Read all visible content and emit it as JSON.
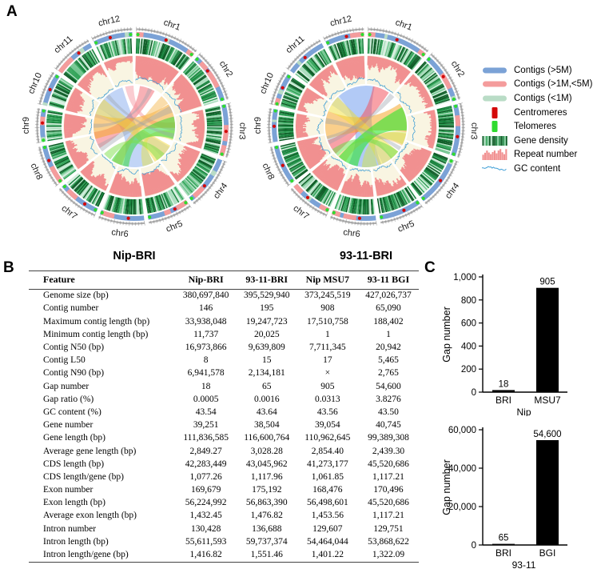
{
  "panels": {
    "a": "A",
    "b": "B",
    "c": "C"
  },
  "circos": {
    "plots": [
      {
        "title": "Nip-BRI",
        "seed": 7,
        "chromosomes": [
          "chr1",
          "chr2",
          "chr3",
          "chr4",
          "chr5",
          "chr6",
          "chr7",
          "chr8",
          "chr9",
          "chr10",
          "chr11",
          "chr12"
        ]
      },
      {
        "title": "93-11-BRI",
        "seed": 23,
        "chromosomes": [
          "chr1",
          "chr2",
          "chr3",
          "chr4",
          "chr5",
          "chr6",
          "chr7",
          "chr8",
          "chr9",
          "chr10",
          "chr11",
          "chr12"
        ]
      }
    ],
    "colors": {
      "contig_large": "#7ba2d6",
      "contig_mid": "#f49c9c",
      "contig_small": "#b9dcc6",
      "centromere": "#d40909",
      "telomere": "#2fdb2f",
      "repeat": "#f19090",
      "gc": "#3e9ed6",
      "scale_ring": "#b0b0b0",
      "inner_background": "#f8f4df",
      "gene_density_palette": [
        "#0a5a23",
        "#15803a",
        "#2fa256",
        "#6fc48d",
        "#a9dcbc",
        "#d7efe0"
      ]
    },
    "legend": {
      "items": [
        {
          "label": "Contigs (>5M)",
          "type": "bar",
          "color": "#7ba2d6"
        },
        {
          "label": "Contigs (>1M,<5M)",
          "type": "bar",
          "color": "#f49c9c"
        },
        {
          "label": "Contigs (<1M)",
          "type": "bar",
          "color": "#b9dcc6"
        },
        {
          "label": "Centromeres",
          "type": "vbar",
          "color": "#d40909"
        },
        {
          "label": "Telomeres",
          "type": "vbar",
          "color": "#2fdb2f"
        },
        {
          "label": "Gene density",
          "type": "density",
          "color": "#15803a"
        },
        {
          "label": "Repeat number",
          "type": "hist",
          "color": "#f19090"
        },
        {
          "label": "GC content",
          "type": "wave",
          "color": "#3e9ed6"
        }
      ]
    }
  },
  "table": {
    "columns": [
      "Feature",
      "Nip-BRI",
      "93-11-BRI",
      "Nip MSU7",
      "93-11 BGI"
    ],
    "rows": [
      {
        "feature": "Genome size (bp)",
        "values": [
          "380,697,840",
          "395,529,940",
          "373,245,519",
          "427,026,737"
        ]
      },
      {
        "feature": "Contig number",
        "values": [
          "146",
          "195",
          "908",
          "65,090"
        ]
      },
      {
        "feature": "Maximum contig length (bp)",
        "values": [
          "33,938,048",
          "19,247,723",
          "17,510,758",
          "188,402"
        ]
      },
      {
        "feature": "Minimum contig length (bp)",
        "values": [
          "11,737",
          "20,025",
          "1",
          "1"
        ]
      },
      {
        "feature": "Contig N50 (bp)",
        "values": [
          "16,973,866",
          "9,639,809",
          "7,711,345",
          "20,942"
        ]
      },
      {
        "feature": "Contig L50",
        "values": [
          "8",
          "15",
          "17",
          "5,465"
        ]
      },
      {
        "feature": "Contig N90 (bp)",
        "values": [
          "6,941,578",
          "2,134,181",
          "×",
          "2,765"
        ]
      },
      {
        "feature": "Gap number",
        "values": [
          "18",
          "65",
          "905",
          "54,600"
        ]
      },
      {
        "feature": "Gap ratio (%)",
        "values": [
          "0.0005",
          "0.0016",
          "0.0313",
          "3.8276"
        ]
      },
      {
        "feature": "GC content (%)",
        "values": [
          "43.54",
          "43.64",
          "43.56",
          "43.50"
        ]
      },
      {
        "feature": "Gene number",
        "values": [
          "39,251",
          "38,504",
          "39,054",
          "40,745"
        ]
      },
      {
        "feature": "Gene length (bp)",
        "values": [
          "111,836,585",
          "116,600,764",
          "110,962,645",
          "99,389,308"
        ]
      },
      {
        "feature": "Average gene length (bp)",
        "values": [
          "2,849.27",
          "3,028.28",
          "2,854.40",
          "2,439.30"
        ]
      },
      {
        "feature": "CDS length (bp)",
        "values": [
          "42,283,449",
          "43,045,962",
          "41,273,177",
          "45,520,686"
        ]
      },
      {
        "feature": "CDS length/gene (bp)",
        "values": [
          "1,077.26",
          "1,117.96",
          "1,061.85",
          "1,117.21"
        ]
      },
      {
        "feature": "Exon number",
        "values": [
          "169,679",
          "175,192",
          "168,476",
          "170,496"
        ]
      },
      {
        "feature": "Exon length (bp)",
        "values": [
          "56,224,992",
          "56,863,390",
          "56,498,601",
          "45,520,686"
        ]
      },
      {
        "feature": "Average exon length (bp)",
        "values": [
          "1,432.45",
          "1,476.82",
          "1,453.56",
          "1,117.21"
        ]
      },
      {
        "feature": "Intron number",
        "values": [
          "130,428",
          "136,688",
          "129,607",
          "129,751"
        ]
      },
      {
        "feature": "Intron length (bp)",
        "values": [
          "55,611,593",
          "59,737,374",
          "54,464,044",
          "53,868,622"
        ]
      },
      {
        "feature": "Intron length/gene (bp)",
        "values": [
          "1,416.82",
          "1,551.46",
          "1,401.22",
          "1,322.09"
        ]
      }
    ]
  },
  "chart_data": [
    {
      "type": "bar",
      "ylabel": "Gap number",
      "group_label": "Nip",
      "categories": [
        "BRI",
        "MSU7"
      ],
      "values": [
        18,
        905
      ],
      "value_labels": [
        "18",
        "905"
      ],
      "ylim": [
        0,
        1000
      ],
      "yticks": [
        0,
        200,
        400,
        600,
        800,
        1000
      ],
      "ytick_labels": [
        "0",
        "200",
        "400",
        "600",
        "800",
        "1,000"
      ],
      "bar_color": "#000000",
      "grid": false,
      "legend": "none"
    },
    {
      "type": "bar",
      "ylabel": "Gap number",
      "group_label": "93-11",
      "categories": [
        "BRI",
        "BGI"
      ],
      "values": [
        65,
        54600
      ],
      "value_labels": [
        "65",
        "54,600"
      ],
      "ylim": [
        0,
        60000
      ],
      "yticks": [
        0,
        20000,
        40000,
        60000
      ],
      "ytick_labels": [
        "0",
        "20,000",
        "40,000",
        "60,000"
      ],
      "bar_color": "#000000",
      "grid": false,
      "legend": "none"
    }
  ]
}
